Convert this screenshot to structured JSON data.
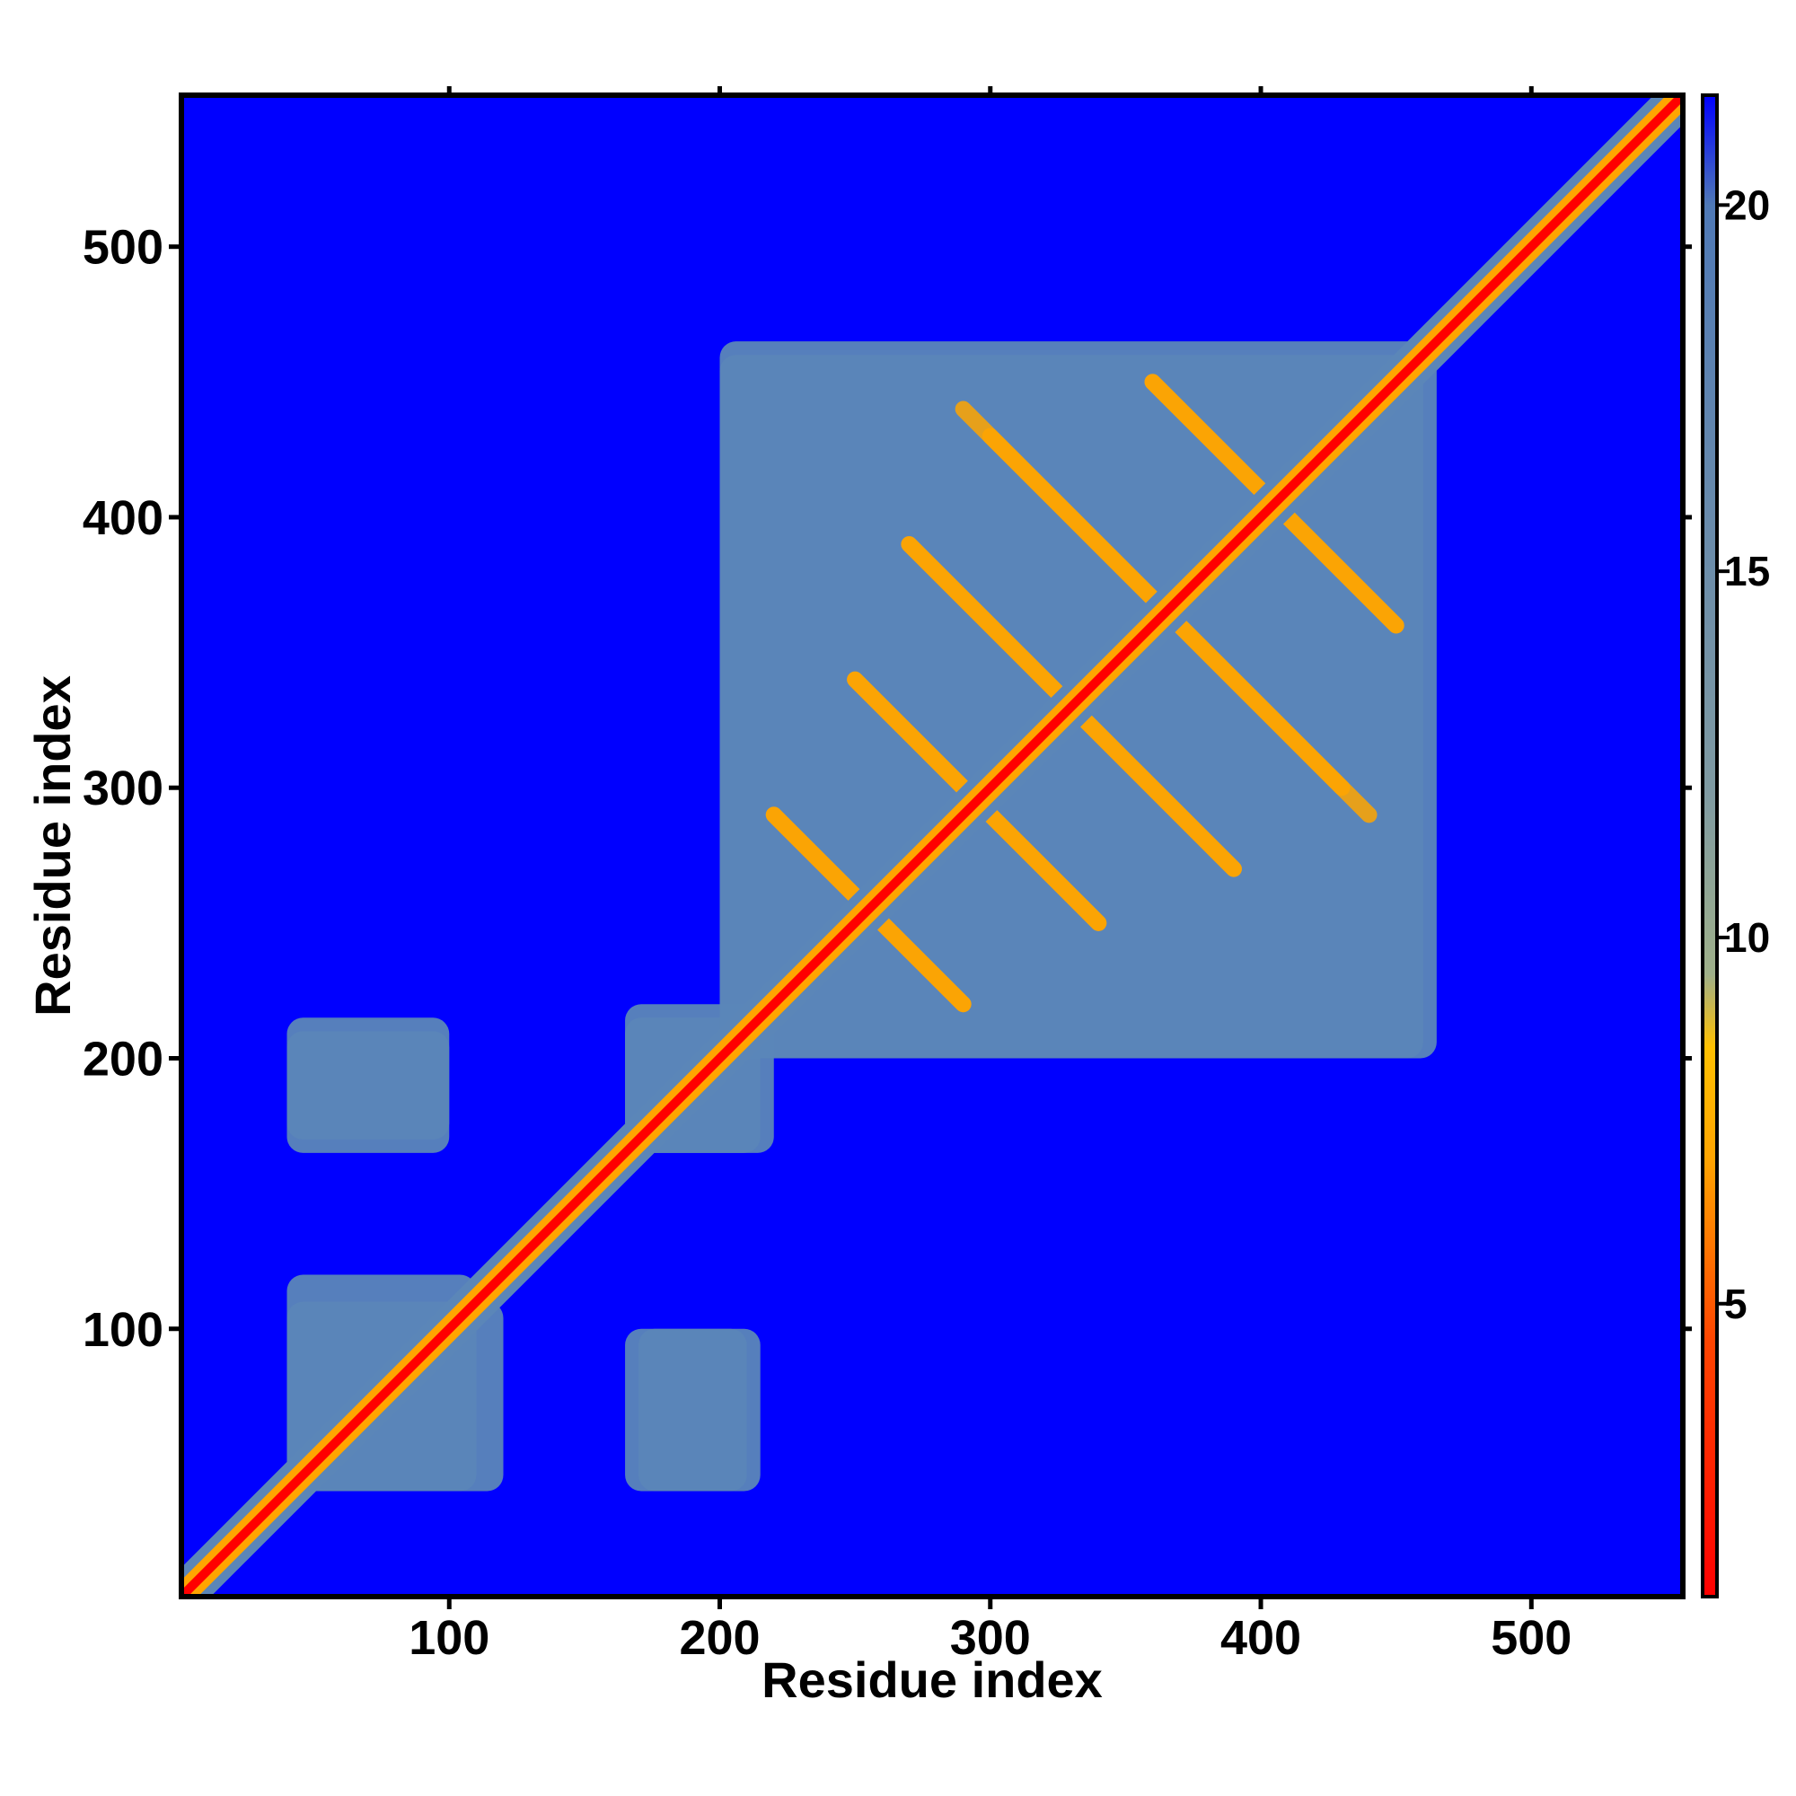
{
  "chart_data": {
    "type": "heatmap",
    "title": "",
    "xlabel": "Residue index",
    "ylabel": "Residue index",
    "xlim": [
      1,
      556
    ],
    "ylim": [
      1,
      556
    ],
    "x_ticks": [
      100,
      200,
      300,
      400,
      500
    ],
    "x_tick_labels": [
      "100",
      "200",
      "300",
      "400",
      "500"
    ],
    "y_ticks": [
      100,
      200,
      300,
      400,
      500
    ],
    "y_tick_labels": [
      "100",
      "200",
      "300",
      "400",
      "500"
    ],
    "colorbar": {
      "range": [
        1,
        21.5
      ],
      "ticks": [
        5,
        10,
        15,
        20
      ],
      "tick_labels": [
        "5",
        "10",
        "15",
        "20"
      ],
      "colors": [
        {
          "value": 1,
          "color": "#ff0000"
        },
        {
          "value": 4.5,
          "color": "#ff4500"
        },
        {
          "value": 7,
          "color": "#ffa500"
        },
        {
          "value": 8.5,
          "color": "#ffc000"
        },
        {
          "value": 9.5,
          "color": "#9fb08a"
        },
        {
          "value": 12,
          "color": "#7f9aa2"
        },
        {
          "value": 20,
          "color": "#4f79b6"
        },
        {
          "value": 21.5,
          "color": "#0000ff"
        }
      ]
    },
    "colors": {
      "background": "#0000ff",
      "contact_region": "#5b86b8",
      "diagonal": "#ff0000",
      "near_contact": "#ffa500"
    },
    "features": {
      "diagonal": {
        "from": 1,
        "to": 556
      },
      "contact_blocks": [
        {
          "x": [
            40,
            110
          ],
          "y": [
            40,
            120
          ]
        },
        {
          "x": [
            170,
            215
          ],
          "y": [
            40,
            100
          ]
        },
        {
          "x": [
            40,
            100
          ],
          "y": [
            165,
            210
          ]
        },
        {
          "x": [
            165,
            220
          ],
          "y": [
            165,
            215
          ]
        },
        {
          "x": [
            200,
            460
          ],
          "y": [
            200,
            465
          ]
        }
      ],
      "antidiagonal_bands": [
        {
          "center_sum": 510,
          "x": [
            220,
            290
          ]
        },
        {
          "center_sum": 590,
          "x": [
            250,
            340
          ]
        },
        {
          "center_sum": 660,
          "x": [
            270,
            390
          ]
        },
        {
          "center_sum": 730,
          "x": [
            300,
            440
          ]
        },
        {
          "center_sum": 810,
          "x": [
            360,
            450
          ]
        }
      ]
    }
  }
}
